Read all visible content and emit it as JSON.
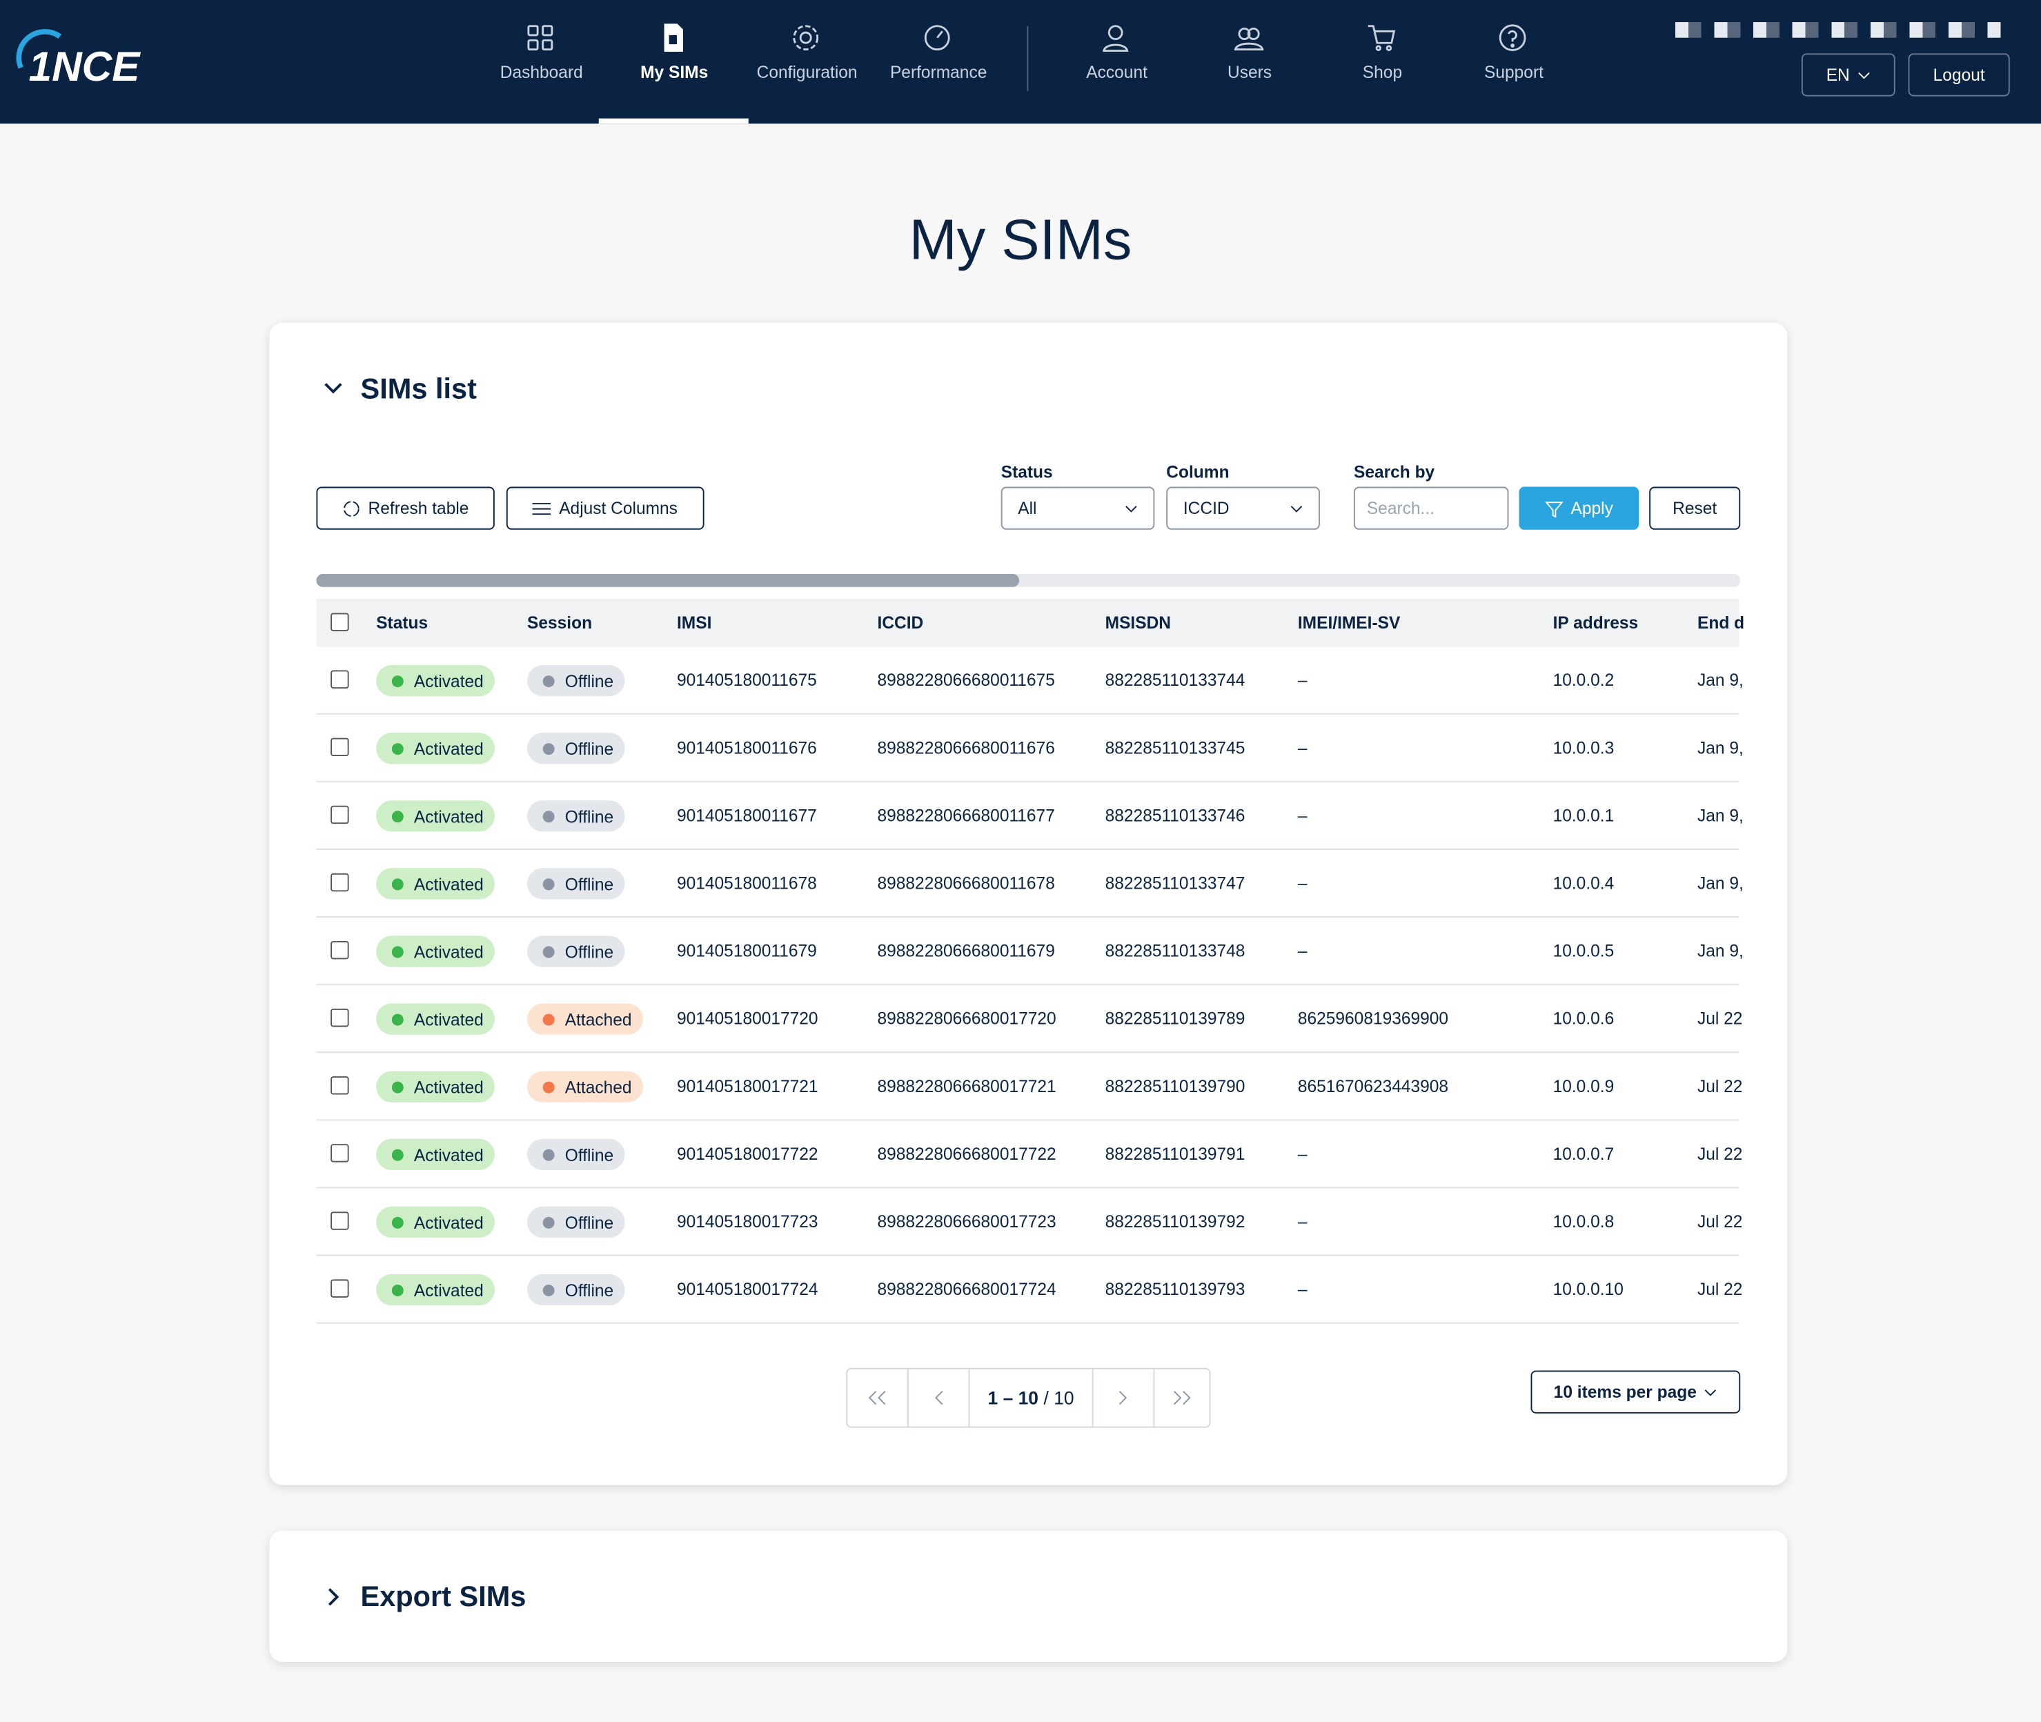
{
  "nav": {
    "items": [
      "Dashboard",
      "My SIMs",
      "Configuration",
      "Performance",
      "Account",
      "Users",
      "Shop",
      "Support"
    ],
    "language": "EN",
    "logout": "Logout"
  },
  "page_title": "My SIMs",
  "sims_list": {
    "title": "SIMs list",
    "refresh": "Refresh table",
    "adjust": "Adjust Columns",
    "filters": {
      "status_label": "Status",
      "status_value": "All",
      "column_label": "Column",
      "column_value": "ICCID",
      "search_label": "Search by",
      "search_placeholder": "Search...",
      "apply": "Apply",
      "reset": "Reset"
    },
    "table": {
      "headers": [
        "Status",
        "Session",
        "IMSI",
        "ICCID",
        "MSISDN",
        "IMEI/IMEI-SV",
        "IP address",
        "End d"
      ],
      "rows": [
        [
          "Activated",
          "Offline",
          "901405180011675",
          "8988228066680011675",
          "882285110133744",
          "–",
          "10.0.0.2",
          "Jan 9,"
        ],
        [
          "Activated",
          "Offline",
          "901405180011676",
          "8988228066680011676",
          "882285110133745",
          "–",
          "10.0.0.3",
          "Jan 9,"
        ],
        [
          "Activated",
          "Offline",
          "901405180011677",
          "8988228066680011677",
          "882285110133746",
          "–",
          "10.0.0.1",
          "Jan 9,"
        ],
        [
          "Activated",
          "Offline",
          "901405180011678",
          "8988228066680011678",
          "882285110133747",
          "–",
          "10.0.0.4",
          "Jan 9,"
        ],
        [
          "Activated",
          "Offline",
          "901405180011679",
          "8988228066680011679",
          "882285110133748",
          "–",
          "10.0.0.5",
          "Jan 9,"
        ],
        [
          "Activated",
          "Attached",
          "901405180017720",
          "8988228066680017720",
          "882285110139789",
          "8625960819369900",
          "10.0.0.6",
          "Jul 22"
        ],
        [
          "Activated",
          "Attached",
          "901405180017721",
          "8988228066680017721",
          "882285110139790",
          "8651670623443908",
          "10.0.0.9",
          "Jul 22"
        ],
        [
          "Activated",
          "Offline",
          "901405180017722",
          "8988228066680017722",
          "882285110139791",
          "–",
          "10.0.0.7",
          "Jul 22"
        ],
        [
          "Activated",
          "Offline",
          "901405180017723",
          "8988228066680017723",
          "882285110139792",
          "–",
          "10.0.0.8",
          "Jul 22"
        ],
        [
          "Activated",
          "Offline",
          "901405180017724",
          "8988228066680017724",
          "882285110139793",
          "–",
          "10.0.0.10",
          "Jul 22"
        ]
      ]
    },
    "pagination": {
      "range": "1 – 10",
      "total": "/ 10",
      "per_page": "10 items per page"
    }
  },
  "export": {
    "title": "Export SIMs"
  }
}
